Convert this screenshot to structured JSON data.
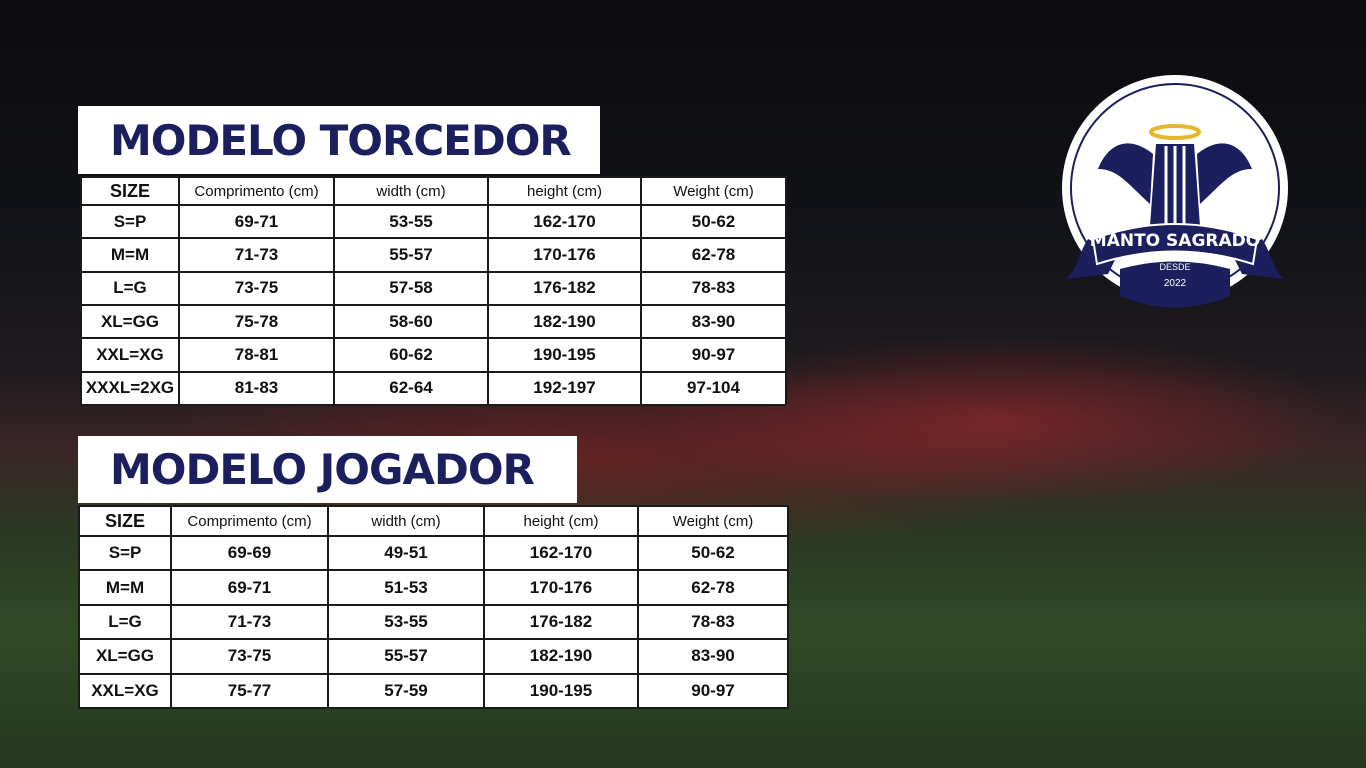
{
  "tables": [
    {
      "title": "MODELO TORCEDOR",
      "header": [
        "SIZE",
        "Comprimento (cm)",
        "width (cm)",
        "height (cm)",
        "Weight (cm)"
      ],
      "rows": [
        [
          "S=P",
          "69-71",
          "53-55",
          "162-170",
          "50-62"
        ],
        [
          "M=M",
          "71-73",
          "55-57",
          "170-176",
          "62-78"
        ],
        [
          "L=G",
          "73-75",
          "57-58",
          "176-182",
          "78-83"
        ],
        [
          "XL=GG",
          "75-78",
          "58-60",
          "182-190",
          "83-90"
        ],
        [
          "XXL=XG",
          "78-81",
          "60-62",
          "190-195",
          "90-97"
        ],
        [
          "XXXL=2XG",
          "81-83",
          "62-64",
          "192-197",
          "97-104"
        ]
      ]
    },
    {
      "title": "MODELO JOGADOR",
      "header": [
        "SIZE",
        "Comprimento (cm)",
        "width (cm)",
        "height (cm)",
        "Weight (cm)"
      ],
      "rows": [
        [
          "S=P",
          "69-69",
          "49-51",
          "162-170",
          "50-62"
        ],
        [
          "M=M",
          "69-71",
          "51-53",
          "170-176",
          "62-78"
        ],
        [
          "L=G",
          "71-73",
          "53-55",
          "176-182",
          "78-83"
        ],
        [
          "XL=GG",
          "73-75",
          "55-57",
          "182-190",
          "83-90"
        ],
        [
          "XXL=XG",
          "75-77",
          "57-59",
          "190-195",
          "90-97"
        ]
      ]
    }
  ],
  "logo": {
    "name": "MANTO SAGRADO",
    "since": "DESDE",
    "year": "2022"
  }
}
